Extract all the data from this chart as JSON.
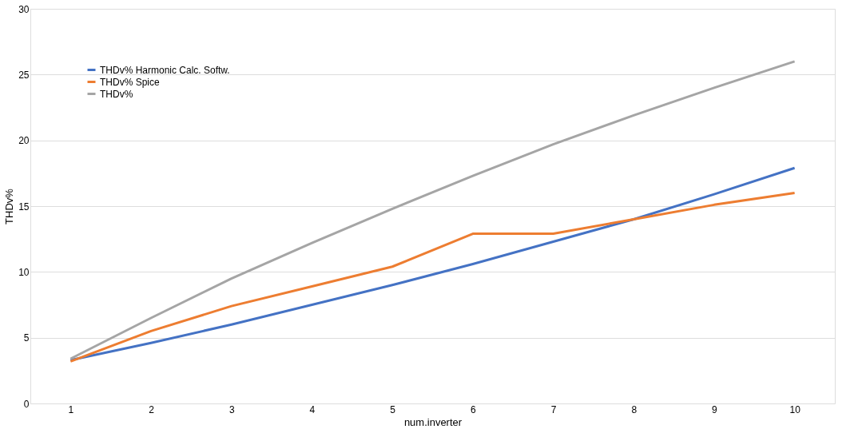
{
  "chart_data": {
    "type": "line",
    "xlabel": "num.inverter",
    "ylabel": "THDv%",
    "categories": [
      "1",
      "2",
      "3",
      "4",
      "5",
      "6",
      "7",
      "8",
      "9",
      "10"
    ],
    "ylim": [
      0,
      30
    ],
    "yticks": [
      0,
      5,
      10,
      15,
      20,
      25,
      30
    ],
    "grid": "y",
    "legend": "top left",
    "marker": "none",
    "line_style": "solid",
    "series": [
      {
        "name": "THDv% Harmonic Calc. Softw.",
        "color": "#4472c4",
        "values": [
          3.3,
          4.6,
          6.0,
          7.5,
          9.0,
          10.6,
          12.3,
          14.0,
          15.9,
          17.9
        ]
      },
      {
        "name": "THDv% Spice",
        "color": "#ed7d31",
        "values": [
          3.2,
          5.5,
          7.4,
          8.9,
          10.4,
          12.9,
          12.9,
          14.0,
          15.1,
          16.0
        ]
      },
      {
        "name": "THDv%",
        "color": "#a5a5a5",
        "values": [
          3.4,
          6.5,
          9.5,
          12.2,
          14.8,
          17.3,
          19.7,
          21.9,
          24.0,
          26.0
        ]
      }
    ]
  }
}
